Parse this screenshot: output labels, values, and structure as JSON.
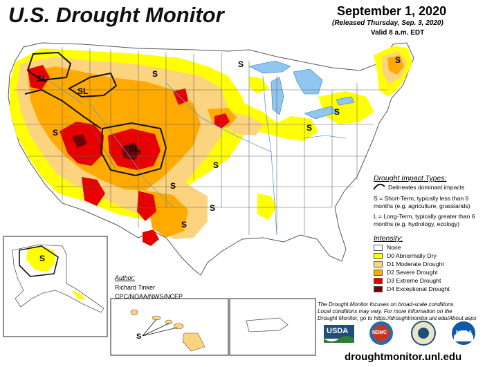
{
  "header": {
    "title": "U.S. Drought Monitor",
    "date": "September 1, 2020",
    "released": "(Released Thursday, Sep. 3, 2020)",
    "valid": "Valid 8 a.m. EDT"
  },
  "impact_legend": {
    "heading": "Drought Impact Types:",
    "delineates": "Delineates dominant impacts",
    "short_term": "S = Short-Term, typically less than 6 months (e.g. agriculture, grasslands)",
    "long_term": "L = Long-Term, typically greater than 6 months (e.g. hydrology, ecology)"
  },
  "intensity_legend": {
    "heading": "Intensity:",
    "items": [
      {
        "label": "None",
        "color": "#ffffff"
      },
      {
        "label": "D0 Abnormally Dry",
        "color": "#ffff00"
      },
      {
        "label": "D1 Moderate Drought",
        "color": "#fcd37f"
      },
      {
        "label": "D2 Severe Drought",
        "color": "#ffaa00"
      },
      {
        "label": "D3 Extreme Drought",
        "color": "#e60000"
      },
      {
        "label": "D4 Exceptional Drought",
        "color": "#730000"
      }
    ]
  },
  "author": {
    "heading": "Author:",
    "name": "Richard Tinker",
    "org": "CPC/NOAA/NWS/NCEP"
  },
  "note": {
    "line1": "The Drought Monitor focuses on broad-scale conditions.",
    "line2": "Local conditions may vary. For more information on the",
    "line3": "Drought Monitor, go to https://droughtmonitor.unl.edu/About.aspx"
  },
  "map_labels": {
    "s": "S",
    "sl": "SL"
  },
  "logos": {
    "usda": "USDA",
    "ndmc": "NDMC",
    "noaa": "NOAA"
  },
  "url": "droughtmonitor.unl.edu",
  "colors": {
    "d0": "#ffff00",
    "d1": "#fcd37f",
    "d2": "#ffaa00",
    "d3": "#e60000",
    "d4": "#730000",
    "water": "#8fc7f0",
    "rivers": "#5b9bd5",
    "borders": "#555555"
  }
}
